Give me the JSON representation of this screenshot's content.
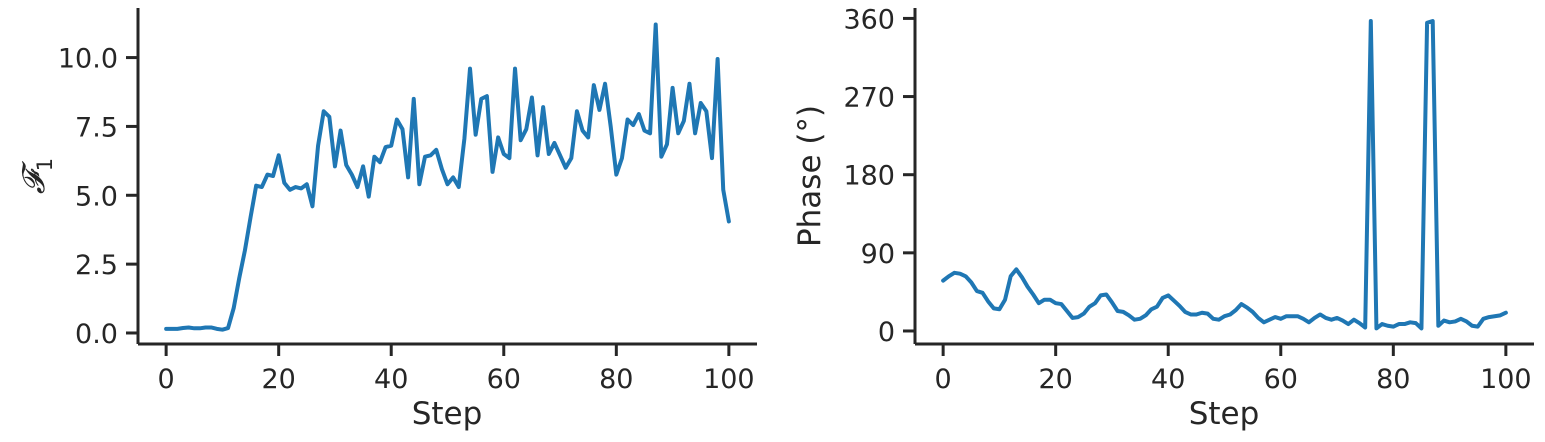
{
  "chart_data": [
    {
      "type": "line",
      "xlabel": "Step",
      "ylabel": "𝓕",
      "ylabel_sub": "1",
      "xlim": [
        -5,
        105
      ],
      "ylim": [
        -0.4,
        11.8
      ],
      "xticks": [
        0,
        20,
        40,
        60,
        80,
        100
      ],
      "xtick_labels": [
        "0",
        "20",
        "40",
        "60",
        "80",
        "100"
      ],
      "yticks": [
        0,
        2.5,
        5,
        7.5,
        10
      ],
      "ytick_labels": [
        "0.0",
        "2.5",
        "5.0",
        "7.5",
        "10.0"
      ],
      "grid": false,
      "color": "#1f77b4",
      "series": [
        {
          "x": [
            0,
            1,
            2,
            3,
            4,
            5,
            6,
            7,
            8,
            9,
            10,
            11,
            12,
            13,
            14,
            15,
            16,
            17,
            18,
            19,
            20,
            21,
            22,
            23,
            24,
            25,
            26,
            27,
            28,
            29,
            30,
            31,
            32,
            33,
            34,
            35,
            36,
            37,
            38,
            39,
            40,
            41,
            42,
            43,
            44,
            45,
            46,
            47,
            48,
            49,
            50,
            51,
            52,
            53,
            54,
            55,
            56,
            57,
            58,
            59,
            60,
            61,
            62,
            63,
            64,
            65,
            66,
            67,
            68,
            69,
            70,
            71,
            72,
            73,
            74,
            75,
            76,
            77,
            78,
            79,
            80,
            81,
            82,
            83,
            84,
            85,
            86,
            87,
            88,
            89,
            90,
            91,
            92,
            93,
            94,
            95,
            96,
            97,
            98,
            99,
            100
          ],
          "y": [
            0.15,
            0.15,
            0.15,
            0.18,
            0.2,
            0.17,
            0.17,
            0.2,
            0.2,
            0.15,
            0.12,
            0.18,
            0.9,
            2.0,
            3.0,
            4.2,
            5.35,
            5.3,
            5.75,
            5.7,
            6.45,
            5.45,
            5.2,
            5.3,
            5.25,
            5.4,
            4.6,
            6.8,
            8.05,
            7.85,
            6.05,
            7.35,
            6.1,
            5.75,
            5.3,
            6.05,
            4.95,
            6.4,
            6.2,
            6.75,
            6.8,
            7.75,
            7.4,
            5.65,
            8.5,
            5.4,
            6.4,
            6.45,
            6.65,
            5.95,
            5.4,
            5.65,
            5.3,
            7.05,
            9.6,
            7.2,
            8.5,
            8.6,
            5.85,
            7.1,
            6.5,
            6.35,
            9.6,
            7.0,
            7.4,
            8.55,
            6.45,
            8.2,
            6.5,
            6.9,
            6.45,
            6.0,
            6.35,
            8.05,
            7.35,
            7.1,
            9.0,
            8.1,
            9.05,
            7.5,
            5.75,
            6.35,
            7.75,
            7.55,
            7.95,
            7.35,
            7.25,
            11.2,
            6.4,
            6.85,
            8.9,
            7.25,
            7.7,
            9.05,
            7.25,
            8.35,
            8.05,
            6.35,
            9.95,
            5.2,
            4.05
          ]
        }
      ]
    },
    {
      "type": "line",
      "xlabel": "Step",
      "ylabel": "Phase (°)",
      "xlim": [
        -5,
        105
      ],
      "ylim": [
        -15,
        372
      ],
      "xticks": [
        0,
        20,
        40,
        60,
        80,
        100
      ],
      "xtick_labels": [
        "0",
        "20",
        "40",
        "60",
        "80",
        "100"
      ],
      "yticks": [
        0,
        90,
        180,
        270,
        360
      ],
      "ytick_labels": [
        "0",
        "90",
        "180",
        "270",
        "360"
      ],
      "grid": false,
      "color": "#1f77b4",
      "series": [
        {
          "x": [
            0,
            1,
            2,
            3,
            4,
            5,
            6,
            7,
            8,
            9,
            10,
            11,
            12,
            13,
            14,
            15,
            16,
            17,
            18,
            19,
            20,
            21,
            22,
            23,
            24,
            25,
            26,
            27,
            28,
            29,
            30,
            31,
            32,
            33,
            34,
            35,
            36,
            37,
            38,
            39,
            40,
            41,
            42,
            43,
            44,
            45,
            46,
            47,
            48,
            49,
            50,
            51,
            52,
            53,
            54,
            55,
            56,
            57,
            58,
            59,
            60,
            61,
            62,
            63,
            64,
            65,
            66,
            67,
            68,
            69,
            70,
            71,
            72,
            73,
            74,
            75,
            76,
            77,
            78,
            79,
            80,
            81,
            82,
            83,
            84,
            85,
            86,
            87,
            88,
            89,
            90,
            91,
            92,
            93,
            94,
            95,
            96,
            97,
            98,
            99,
            100
          ],
          "y": [
            58,
            63,
            67,
            66,
            63,
            56,
            46,
            44,
            34,
            26,
            25,
            36,
            63,
            71,
            62,
            51,
            42,
            32,
            36,
            36,
            32,
            31,
            23,
            15,
            16,
            20,
            28,
            32,
            41,
            42,
            33,
            23,
            22,
            18,
            13,
            14,
            18,
            25,
            28,
            38,
            41,
            35,
            29,
            22,
            19,
            19,
            21,
            20,
            14,
            13,
            17,
            19,
            24,
            31,
            27,
            22,
            15,
            10,
            13,
            16,
            14,
            17,
            17,
            17,
            14,
            10,
            15,
            19,
            15,
            13,
            15,
            12,
            8,
            13,
            9,
            4,
            357,
            3,
            8,
            6,
            5,
            8,
            8,
            10,
            9,
            3,
            355,
            357,
            6,
            12,
            10,
            11,
            14,
            11,
            6,
            5,
            14,
            16,
            17,
            18,
            21
          ]
        }
      ]
    }
  ]
}
